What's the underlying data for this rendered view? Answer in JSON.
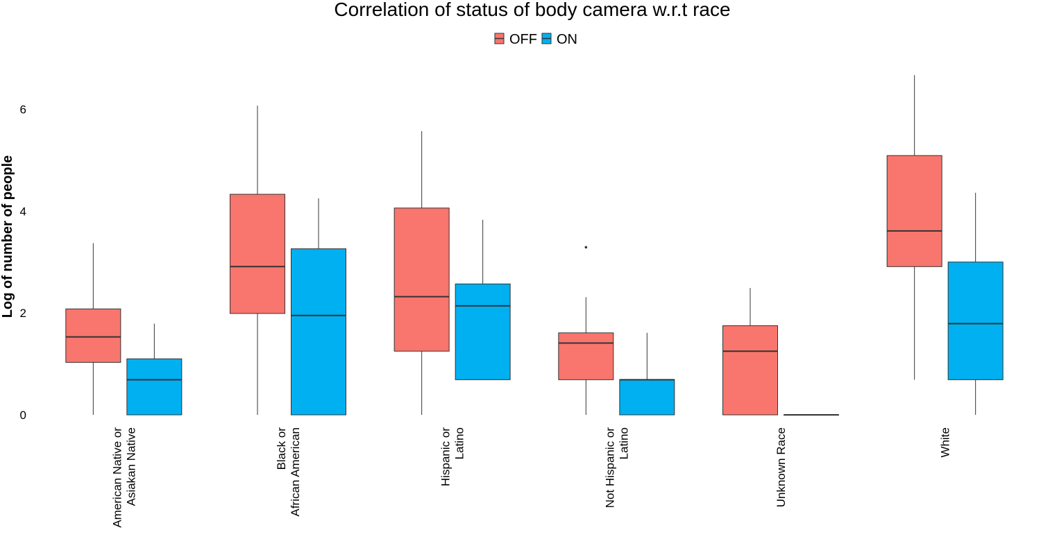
{
  "chart_data": {
    "type": "boxplot",
    "title": "Correlation of status of body camera w.r.t race",
    "ylabel": "Log of number of people",
    "xlabel": "",
    "ylim": [
      0,
      6.7
    ],
    "yticks": [
      0,
      2,
      4,
      6
    ],
    "grid": false,
    "legend_position": "top",
    "categories": [
      [
        "American Native or",
        "Asiakan Native"
      ],
      [
        "Black or",
        "African American"
      ],
      [
        "Hispanic or",
        "Latino"
      ],
      [
        "Not Hispanic or",
        "Latino"
      ],
      [
        "Unknown Race"
      ],
      [
        "White"
      ]
    ],
    "series": [
      {
        "name": "OFF",
        "color": "#F8766D",
        "boxes": [
          {
            "min": 0.0,
            "q1": 1.03,
            "median": 1.53,
            "q3": 2.08,
            "max": 3.37,
            "outliers": []
          },
          {
            "min": 0.0,
            "q1": 1.99,
            "median": 2.91,
            "q3": 4.33,
            "max": 6.07,
            "outliers": []
          },
          {
            "min": 0.0,
            "q1": 1.25,
            "median": 2.32,
            "q3": 4.06,
            "max": 5.57,
            "outliers": []
          },
          {
            "min": 0.0,
            "q1": 0.69,
            "median": 1.41,
            "q3": 1.61,
            "max": 2.31,
            "outliers": [
              3.29
            ]
          },
          {
            "min": 0.0,
            "q1": 0.0,
            "median": 1.25,
            "q3": 1.75,
            "max": 2.49,
            "outliers": []
          },
          {
            "min": 0.69,
            "q1": 2.91,
            "median": 3.61,
            "q3": 5.09,
            "max": 6.67,
            "outliers": []
          }
        ]
      },
      {
        "name": "ON",
        "color": "#00B0F0",
        "boxes": [
          {
            "min": 0.0,
            "q1": 0.0,
            "median": 0.69,
            "q3": 1.1,
            "max": 1.79,
            "outliers": []
          },
          {
            "min": 0.0,
            "q1": 0.0,
            "median": 1.95,
            "q3": 3.26,
            "max": 4.25,
            "outliers": []
          },
          {
            "min": 0.69,
            "q1": 0.69,
            "median": 2.14,
            "q3": 2.57,
            "max": 3.83,
            "outliers": []
          },
          {
            "min": 0.0,
            "q1": 0.0,
            "median": 0.69,
            "q3": 0.69,
            "max": 1.61,
            "outliers": []
          },
          {
            "min": 0.0,
            "q1": 0.0,
            "median": 0.0,
            "q3": 0.0,
            "max": 0.0,
            "outliers": []
          },
          {
            "min": 0.0,
            "q1": 0.69,
            "median": 1.79,
            "q3": 3.0,
            "max": 4.36,
            "outliers": []
          }
        ]
      }
    ]
  }
}
